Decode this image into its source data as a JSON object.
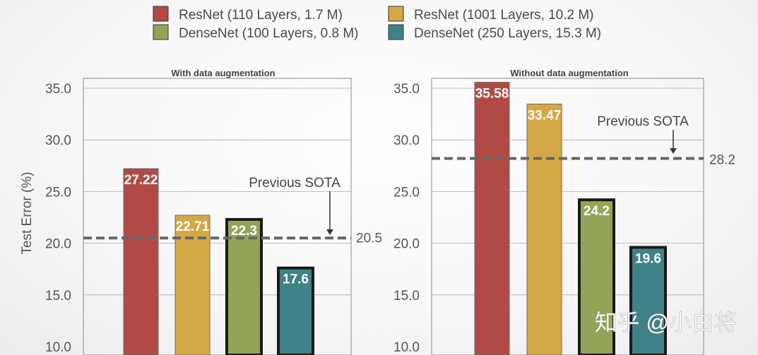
{
  "legend": [
    {
      "label": "ResNet (110 Layers, 1.7 M)",
      "color": "#b14a45"
    },
    {
      "label": "ResNet (1001 Layers, 10.2 M)",
      "color": "#d4a845"
    },
    {
      "label": "DenseNet (100 Layers, 0.8 M)",
      "color": "#94a457"
    },
    {
      "label": "DenseNet (250 Layers, 15.3 M)",
      "color": "#3f8288"
    }
  ],
  "watermark": "知乎 @小白将",
  "chart_data": [
    {
      "type": "bar",
      "title": "With data augmentation",
      "ylabel": "Test Error (%)",
      "ylim": [
        10,
        35
      ],
      "yticks": [
        "10.0",
        "15.0",
        "20.0",
        "25.0",
        "30.0",
        "35.0"
      ],
      "series": [
        {
          "name": "ResNet (110 Layers, 1.7 M)",
          "value": 27.22,
          "label": "27.22",
          "color": "#b14a45",
          "outlined": false
        },
        {
          "name": "ResNet (1001 Layers, 10.2 M)",
          "value": 22.71,
          "label": "22.71",
          "color": "#d4a845",
          "outlined": false
        },
        {
          "name": "DenseNet (100 Layers, 0.8 M)",
          "value": 22.3,
          "label": "22.3",
          "color": "#94a457",
          "outlined": true
        },
        {
          "name": "DenseNet (250 Layers, 15.3 M)",
          "value": 17.6,
          "label": "17.6",
          "color": "#3f8288",
          "outlined": true
        }
      ],
      "reference": {
        "value": 20.5,
        "label": "20.5",
        "annotation": "Previous SOTA"
      }
    },
    {
      "type": "bar",
      "title": "Without data augmentation",
      "ylabel": "",
      "ylim": [
        10,
        35
      ],
      "yticks": [
        "10.0",
        "15.0",
        "20.0",
        "25.0",
        "30.0",
        "35.0"
      ],
      "series": [
        {
          "name": "ResNet (110 Layers, 1.7 M)",
          "value": 35.58,
          "label": "35.58",
          "color": "#b14a45",
          "outlined": false
        },
        {
          "name": "ResNet (1001 Layers, 10.2 M)",
          "value": 33.47,
          "label": "33.47",
          "color": "#d4a845",
          "outlined": false
        },
        {
          "name": "DenseNet (100 Layers, 0.8 M)",
          "value": 24.2,
          "label": "24.2",
          "color": "#94a457",
          "outlined": true
        },
        {
          "name": "DenseNet (250 Layers, 15.3 M)",
          "value": 19.6,
          "label": "19.6",
          "color": "#3f8288",
          "outlined": true
        }
      ],
      "reference": {
        "value": 28.2,
        "label": "28.2",
        "annotation": "Previous SOTA"
      }
    }
  ]
}
